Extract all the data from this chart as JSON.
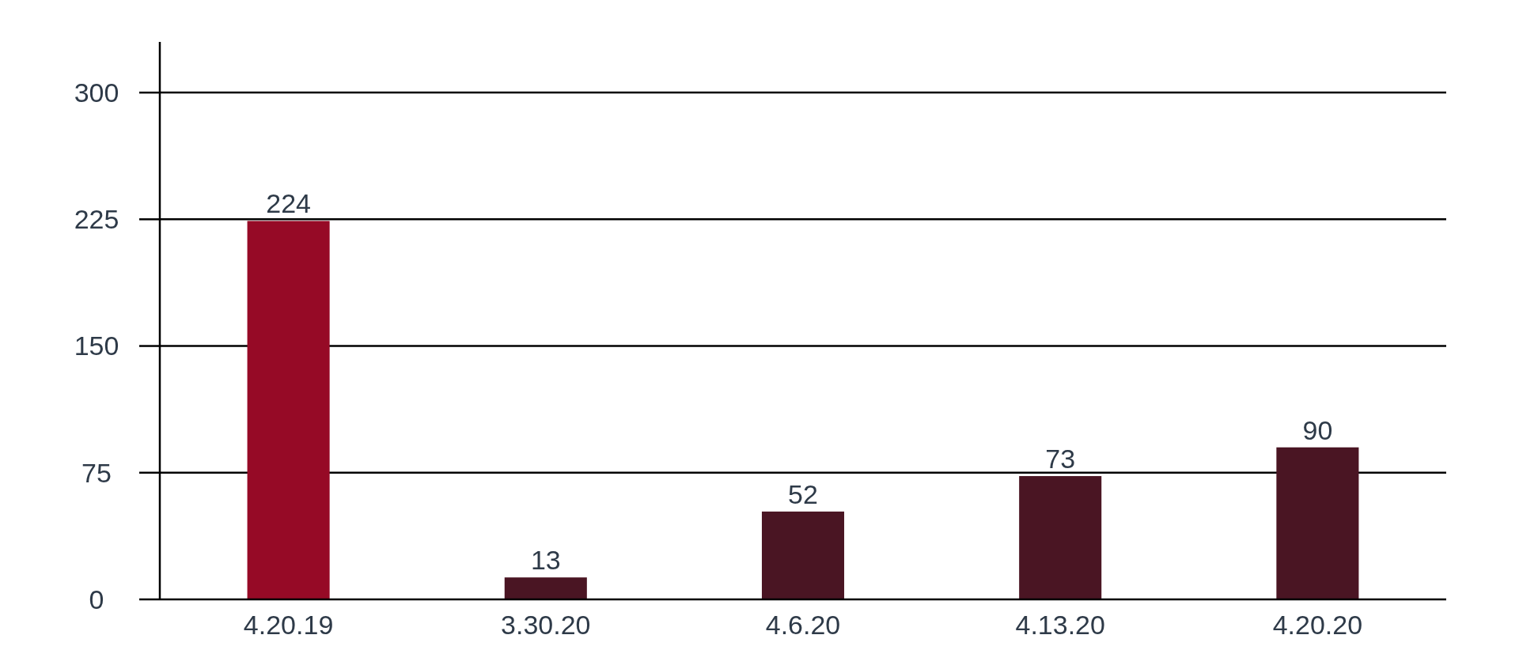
{
  "chart_data": {
    "type": "bar",
    "categories": [
      "4.20.19",
      "3.30.20",
      "4.6.20",
      "4.13.20",
      "4.20.20"
    ],
    "values": [
      224,
      13,
      52,
      73,
      90
    ],
    "colors": [
      "#960a26",
      "#4a1523",
      "#4a1523",
      "#4a1523",
      "#4a1523"
    ],
    "ylim": [
      0,
      330
    ],
    "yticks": [
      0,
      75,
      150,
      225,
      300
    ],
    "grid": "y",
    "data_labels": true
  }
}
